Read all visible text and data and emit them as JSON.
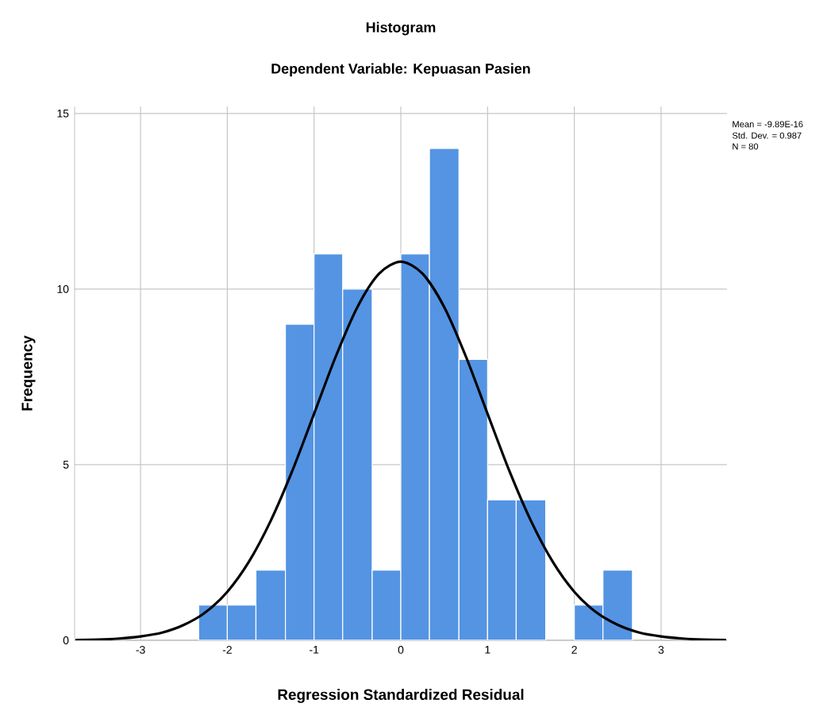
{
  "chart_data": {
    "type": "histogram",
    "title": "Histogram",
    "subtitle": "Dependent Variable: Kepuasan Pasien",
    "xlabel": "Regression Standardized Residual",
    "ylabel": "Frequency",
    "annotations": [
      "Mean = -9.89E-16",
      "Std. Dev. = 0.987",
      "N = 80"
    ],
    "bins": [
      -2.33,
      -2,
      -1.67,
      -1.33,
      -1,
      -0.67,
      -0.33,
      0,
      0.33,
      0.67,
      1,
      1.33,
      1.67,
      2,
      2.33,
      2.67
    ],
    "series": [
      {
        "color": "#5494e3",
        "values": [
          1,
          1,
          2,
          9,
          11,
          10,
          2,
          11,
          14,
          8,
          4,
          4,
          0,
          1,
          2
        ]
      },
      {
        "type": "line",
        "color": "#000000",
        "x": [
          -3.75,
          -3.5,
          -3.25,
          -3,
          -2.75,
          -2.5,
          -2.25,
          -2,
          -1.75,
          -1.5,
          -1.25,
          -1,
          -0.75,
          -0.5,
          -0.25,
          0,
          0.25,
          0.5,
          0.75,
          1,
          1.25,
          1.5,
          1.75,
          2,
          2.25,
          2.5,
          2.75,
          3,
          3.25,
          3.5,
          3.75
        ],
        "values": [
          0.01,
          0.02,
          0.05,
          0.11,
          0.22,
          0.44,
          0.8,
          1.38,
          2.24,
          3.4,
          4.83,
          6.45,
          8.08,
          9.49,
          10.44,
          10.78,
          10.44,
          9.49,
          8.08,
          6.45,
          4.83,
          3.4,
          2.24,
          1.38,
          0.8,
          0.44,
          0.22,
          0.11,
          0.05,
          0.02,
          0.01
        ]
      }
    ],
    "xlim": [
      -3.76,
      3.76
    ],
    "ylim": [
      0,
      15.2
    ],
    "xticks": [
      -3,
      -2,
      -1,
      0,
      1,
      2,
      3
    ],
    "yticks": [
      0,
      5,
      10,
      15
    ],
    "grid": true
  }
}
